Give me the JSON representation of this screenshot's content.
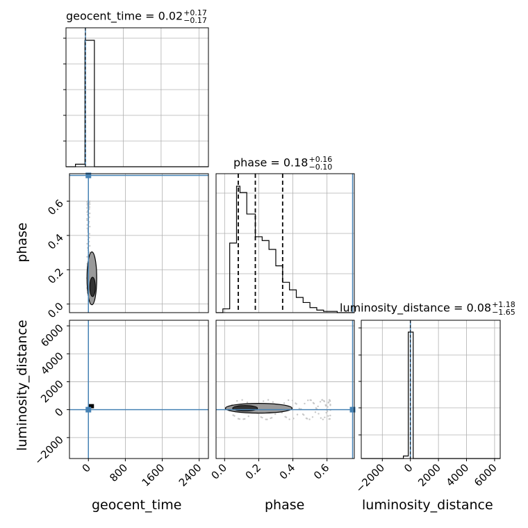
{
  "chart_data": {
    "type": "corner",
    "parameters": [
      "geocent_time",
      "phase",
      "luminosity_distance"
    ],
    "truth": {
      "geocent_time": 0,
      "phase": 0.75,
      "luminosity_distance": 0
    },
    "accent_color": "#4682b4",
    "titles": {
      "geocent_time": {
        "label": "geocent_time = 0.02",
        "plus": "+0.17",
        "minus": "−0.17"
      },
      "phase": {
        "label": "phase = 0.18",
        "plus": "+0.16",
        "minus": "−0.10"
      },
      "luminosity_distance": {
        "label": "luminosity_distance = 0.08",
        "plus": "+1.18",
        "minus": "−1.65"
      }
    },
    "axis_labels": {
      "geocent_time": "geocent_time",
      "phase": "phase",
      "luminosity_distance": "luminosity_distance"
    },
    "ranges": {
      "geocent_time": [
        -410,
        2600
      ],
      "phase": [
        -0.05,
        0.76
      ],
      "luminosity_distance": [
        -3500,
        6400
      ]
    },
    "ticks": {
      "geocent_time": {
        "values": [
          0,
          800,
          1600,
          2400
        ],
        "labels": [
          "0",
          "800",
          "1600",
          "2400"
        ]
      },
      "phase_x": {
        "values": [
          0.0,
          0.2,
          0.4,
          0.6
        ],
        "labels": [
          "0.0",
          "0.2",
          "0.4",
          "0.6"
        ]
      },
      "phase_y": {
        "values": [
          0.0,
          0.2,
          0.4,
          0.6
        ],
        "labels": [
          "0.0",
          "0.2",
          "0.4",
          "0.6"
        ]
      },
      "luminosity_distance_x": {
        "values": [
          -2000,
          0,
          2000,
          4000,
          6000
        ],
        "labels": [
          "−2000",
          "0",
          "2000",
          "4000",
          "6000"
        ]
      },
      "luminosity_distance_y": {
        "values": [
          -2000,
          0,
          2000,
          4000,
          6000
        ],
        "labels": [
          "−2000",
          "0",
          "2000",
          "4000",
          "6000"
        ]
      }
    },
    "hist_geocent_time": {
      "edges": [
        -410,
        -210,
        -10,
        190,
        390,
        2600
      ],
      "counts": [
        0,
        0.02,
        1.0,
        0,
        0
      ]
    },
    "hist_phase": {
      "edges": [
        -0.05,
        -0.01,
        0.03,
        0.07,
        0.09,
        0.13,
        0.18,
        0.22,
        0.26,
        0.3,
        0.34,
        0.38,
        0.42,
        0.46,
        0.5,
        0.54,
        0.58,
        0.62,
        0.66,
        0.76
      ],
      "counts": [
        0,
        0.03,
        0.55,
        1.0,
        0.95,
        0.78,
        0.6,
        0.57,
        0.5,
        0.37,
        0.24,
        0.18,
        0.12,
        0.08,
        0.04,
        0.02,
        0.01,
        0.01,
        0
      ]
    },
    "phase_quantiles": [
      0.08,
      0.18,
      0.34
    ],
    "hist_luminosity_distance": {
      "edges": [
        -3500,
        -500,
        -150,
        200,
        550,
        6400
      ],
      "counts": [
        0,
        0.02,
        1.0,
        0,
        0
      ]
    },
    "grid": true
  }
}
